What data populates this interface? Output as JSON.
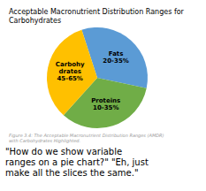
{
  "chart_data": {
    "type": "pie",
    "title": "Acceptable Macronutrient Distribution Ranges for\nCarbohydrates",
    "categories": [
      "Fats\n20-35%",
      "Proteins\n10-35%",
      "Carbohy\ndrates\n45-65%"
    ],
    "values": [
      33.33,
      33.34,
      33.33
    ],
    "colors": [
      "#5B9BD5",
      "#70AD47",
      "#FFC000"
    ],
    "annotations": [
      "Figure 3.4: The Acceptable Macronutrient Distribution Ranges (AMDR) with Carbohydrates Highlighted.",
      "\"How do we show variable\nranges on a pie chart?\" \"Eh, just\nmake all the slices the same.\""
    ]
  }
}
